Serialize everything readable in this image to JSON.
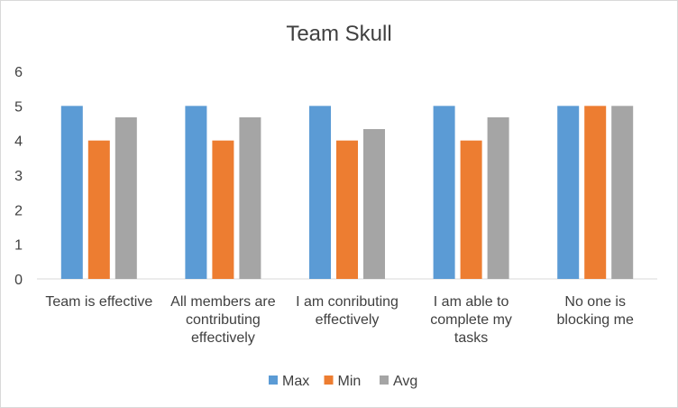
{
  "chart_data": {
    "type": "bar",
    "title": "Team Skull",
    "categories": [
      [
        "Team is effective"
      ],
      [
        "All members are",
        "contributing",
        "effectively"
      ],
      [
        "I am conributing",
        "effectively"
      ],
      [
        "I am able to",
        "complete my",
        "tasks"
      ],
      [
        "No one is",
        "blocking me"
      ]
    ],
    "series": [
      {
        "name": "Max",
        "color": "#5b9bd5",
        "values": [
          5,
          5,
          5,
          5,
          5
        ]
      },
      {
        "name": "Min",
        "color": "#ed7d31",
        "values": [
          4,
          4,
          4,
          4,
          5
        ]
      },
      {
        "name": "Avg",
        "color": "#a5a5a5",
        "values": [
          4.67,
          4.67,
          4.33,
          4.67,
          5
        ]
      }
    ],
    "ylim": [
      0,
      6
    ],
    "yticks": [
      0,
      1,
      2,
      3,
      4,
      5,
      6
    ],
    "grid": false,
    "legend": "bottom"
  }
}
